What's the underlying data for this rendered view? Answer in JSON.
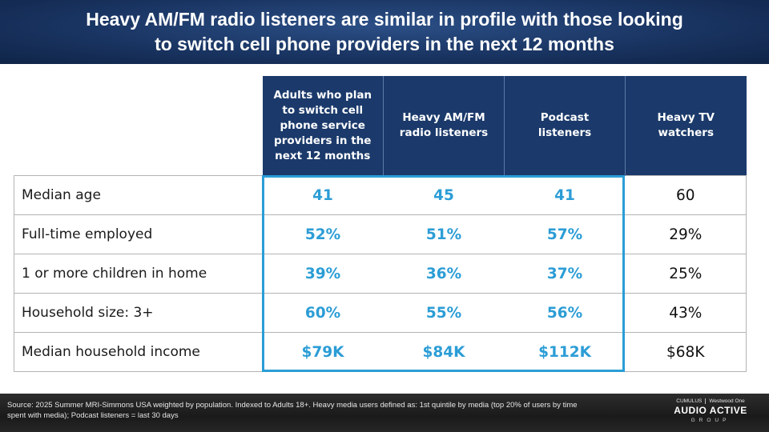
{
  "slide": {
    "title_line1": "Heavy AM/FM radio listeners are similar in profile with those looking",
    "title_line2": "to switch cell phone providers in the next 12 months"
  },
  "table": {
    "columns": [
      "Adults who plan to switch cell phone service providers in the next 12 months",
      "Heavy AM/FM radio listeners",
      "Podcast listeners",
      "Heavy TV watchers"
    ],
    "rows": [
      {
        "label": "Median age",
        "values": [
          "41",
          "45",
          "41",
          "60"
        ]
      },
      {
        "label": "Full-time employed",
        "values": [
          "52%",
          "51%",
          "57%",
          "29%"
        ]
      },
      {
        "label": "1 or more children in home",
        "values": [
          "39%",
          "36%",
          "37%",
          "25%"
        ]
      },
      {
        "label": "Household size: 3+",
        "values": [
          "60%",
          "55%",
          "56%",
          "43%"
        ]
      },
      {
        "label": "Median household income",
        "values": [
          "$79K",
          "$84K",
          "$112K",
          "$68K"
        ]
      }
    ],
    "highlight_color": "#2b9dd6",
    "header_color": "#1b3a6b"
  },
  "footer": {
    "source": "Source: 2025 Summer MRI-Simmons USA weighted by population.  Indexed to Adults 18+. Heavy media users defined as: 1st quintile by media (top 20% of users by time spent with media); Podcast listeners = last 30 days",
    "logo_cumulus": "CUMULUS",
    "logo_westwood": "Westwood One",
    "logo_main": "AUDIO ACTIVE",
    "logo_sub": "GROUP"
  }
}
